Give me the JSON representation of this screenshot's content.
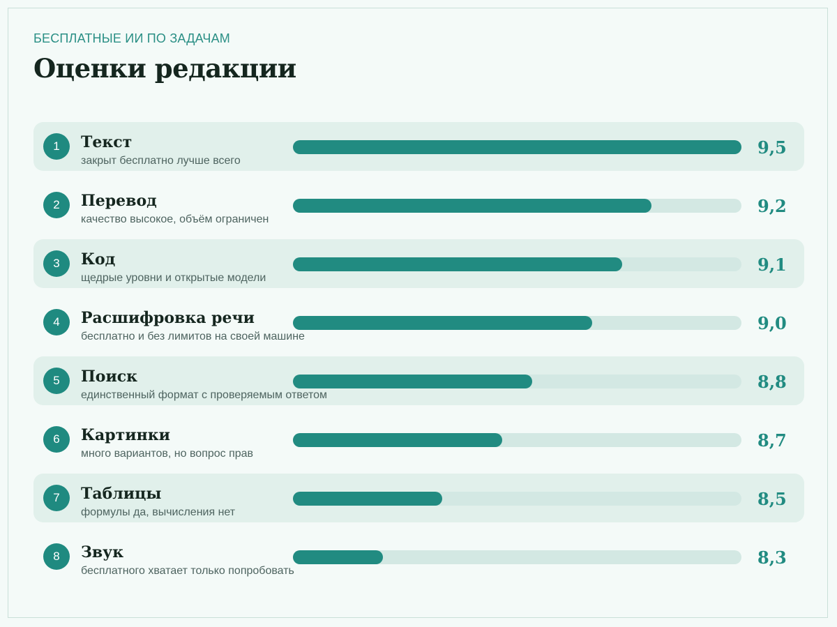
{
  "header": {
    "kicker": "БЕСПЛАТНЫЕ ИИ ПО ЗАДАЧАМ",
    "title": "Оценки редакции"
  },
  "colors": {
    "accent": "#218b81",
    "track": "#d3e8e3",
    "row_shade": "#e1f0eb",
    "background": "#f4faf8",
    "title": "#15261f"
  },
  "chart_data": {
    "type": "bar",
    "orientation": "horizontal",
    "title": "Оценки редакции",
    "subtitle": "БЕСПЛАТНЫЕ ИИ ПО ЗАДАЧАМ",
    "xlabel": "",
    "ylabel": "",
    "axis_min": 8.0,
    "axis_max": 9.5,
    "grid": false,
    "legend": "none",
    "items": [
      {
        "rank": "1",
        "label": "Текст",
        "description": "закрыт бесплатно лучше всего",
        "value": 9.5,
        "value_text": "9,5"
      },
      {
        "rank": "2",
        "label": "Перевод",
        "description": "качество высокое, объём ограничен",
        "value": 9.2,
        "value_text": "9,2"
      },
      {
        "rank": "3",
        "label": "Код",
        "description": "щедрые уровни и открытые модели",
        "value": 9.1,
        "value_text": "9,1"
      },
      {
        "rank": "4",
        "label": "Расшифровка речи",
        "description": "бесплатно и без лимитов на своей машине",
        "value": 9.0,
        "value_text": "9,0"
      },
      {
        "rank": "5",
        "label": "Поиск",
        "description": "единственный формат с проверяемым ответом",
        "value": 8.8,
        "value_text": "8,8"
      },
      {
        "rank": "6",
        "label": "Картинки",
        "description": "много вариантов, но вопрос прав",
        "value": 8.7,
        "value_text": "8,7"
      },
      {
        "rank": "7",
        "label": "Таблицы",
        "description": "формулы да, вычисления нет",
        "value": 8.5,
        "value_text": "8,5"
      },
      {
        "rank": "8",
        "label": "Звук",
        "description": "бесплатного хватает только попробовать",
        "value": 8.3,
        "value_text": "8,3"
      }
    ]
  }
}
